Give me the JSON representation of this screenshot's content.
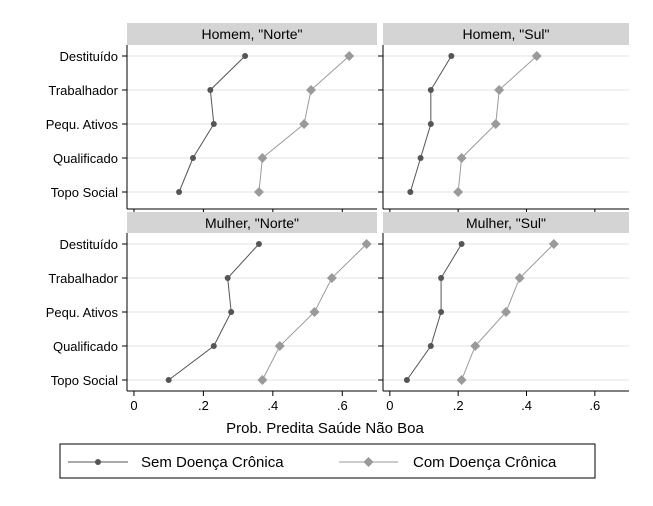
{
  "chart_data": {
    "type": "line",
    "xlabel": "Prob. Predita Saúde Não Boa",
    "xlim": [
      -0.02,
      0.7
    ],
    "xticks": [
      0,
      0.2,
      0.4,
      0.6
    ],
    "xtick_labels": [
      "0",
      ".2",
      ".4",
      ".6"
    ],
    "categories": [
      "Destituído",
      "Trabalhador",
      "Pequ. Ativos",
      "Qualificado",
      "Topo Social"
    ],
    "legend_position": "bottom",
    "grid": true,
    "series_styles": [
      {
        "name": "Sem Doença Crônica",
        "color": "#555555",
        "marker": "circle"
      },
      {
        "name": "Com Doença Crônica",
        "color": "#9a9a9a",
        "marker": "diamond"
      }
    ],
    "panels": [
      {
        "title": "Homem, \"Norte\"",
        "series": [
          {
            "name": "Sem Doença Crônica",
            "values": [
              0.32,
              0.22,
              0.23,
              0.17,
              0.13
            ]
          },
          {
            "name": "Com Doença Crônica",
            "values": [
              0.62,
              0.51,
              0.49,
              0.37,
              0.36
            ]
          }
        ]
      },
      {
        "title": "Homem, \"Sul\"",
        "series": [
          {
            "name": "Sem Doença Crônica",
            "values": [
              0.18,
              0.12,
              0.12,
              0.09,
              0.06
            ]
          },
          {
            "name": "Com Doença Crônica",
            "values": [
              0.43,
              0.32,
              0.31,
              0.21,
              0.2
            ]
          }
        ]
      },
      {
        "title": "Mulher, \"Norte\"",
        "series": [
          {
            "name": "Sem Doença Crônica",
            "values": [
              0.36,
              0.27,
              0.28,
              0.23,
              0.1
            ]
          },
          {
            "name": "Com Doença Crônica",
            "values": [
              0.67,
              0.57,
              0.52,
              0.42,
              0.37
            ]
          }
        ]
      },
      {
        "title": "Mulher, \"Sul\"",
        "series": [
          {
            "name": "Sem Doença Crônica",
            "values": [
              0.21,
              0.15,
              0.15,
              0.12,
              0.05
            ]
          },
          {
            "name": "Com Doença Crônica",
            "values": [
              0.48,
              0.38,
              0.34,
              0.25,
              0.21
            ]
          }
        ]
      }
    ]
  }
}
